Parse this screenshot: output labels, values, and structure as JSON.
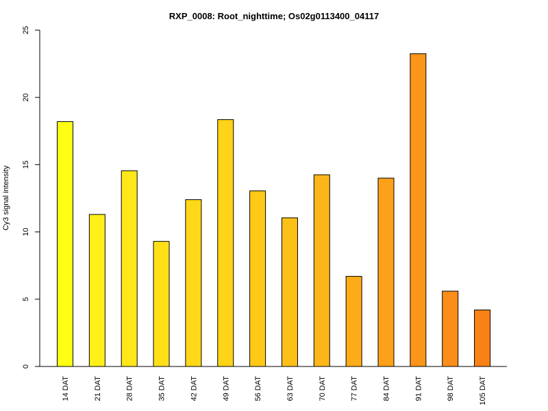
{
  "chart_data": {
    "type": "bar",
    "title": "RXP_0008: Root_nighttime; Os02g0113400_04117",
    "xlabel": "",
    "ylabel": "Cy3 signal intensity",
    "ylim": [
      0,
      25
    ],
    "yticks": [
      "0",
      "5",
      "10",
      "15",
      "20",
      "25"
    ],
    "grid": false,
    "categories": [
      "14 DAT",
      "21 DAT",
      "28 DAT",
      "35 DAT",
      "42 DAT",
      "49 DAT",
      "56 DAT",
      "63 DAT",
      "70 DAT",
      "77 DAT",
      "84 DAT",
      "91 DAT",
      "98 DAT",
      "105 DAT"
    ],
    "values": [
      18.2,
      11.3,
      14.55,
      9.3,
      12.4,
      18.35,
      13.05,
      11.05,
      14.25,
      6.7,
      14.0,
      23.25,
      5.6,
      4.2
    ],
    "colors": [
      "#FFFF14",
      "#FFF01A",
      "#FFE719",
      "#FFE017",
      "#FFD917",
      "#FFD318",
      "#FFC916",
      "#FDC018",
      "#FDB619",
      "#FDAC19",
      "#FCA119",
      "#FB961A",
      "#FB8D1A",
      "#FA8116"
    ]
  }
}
